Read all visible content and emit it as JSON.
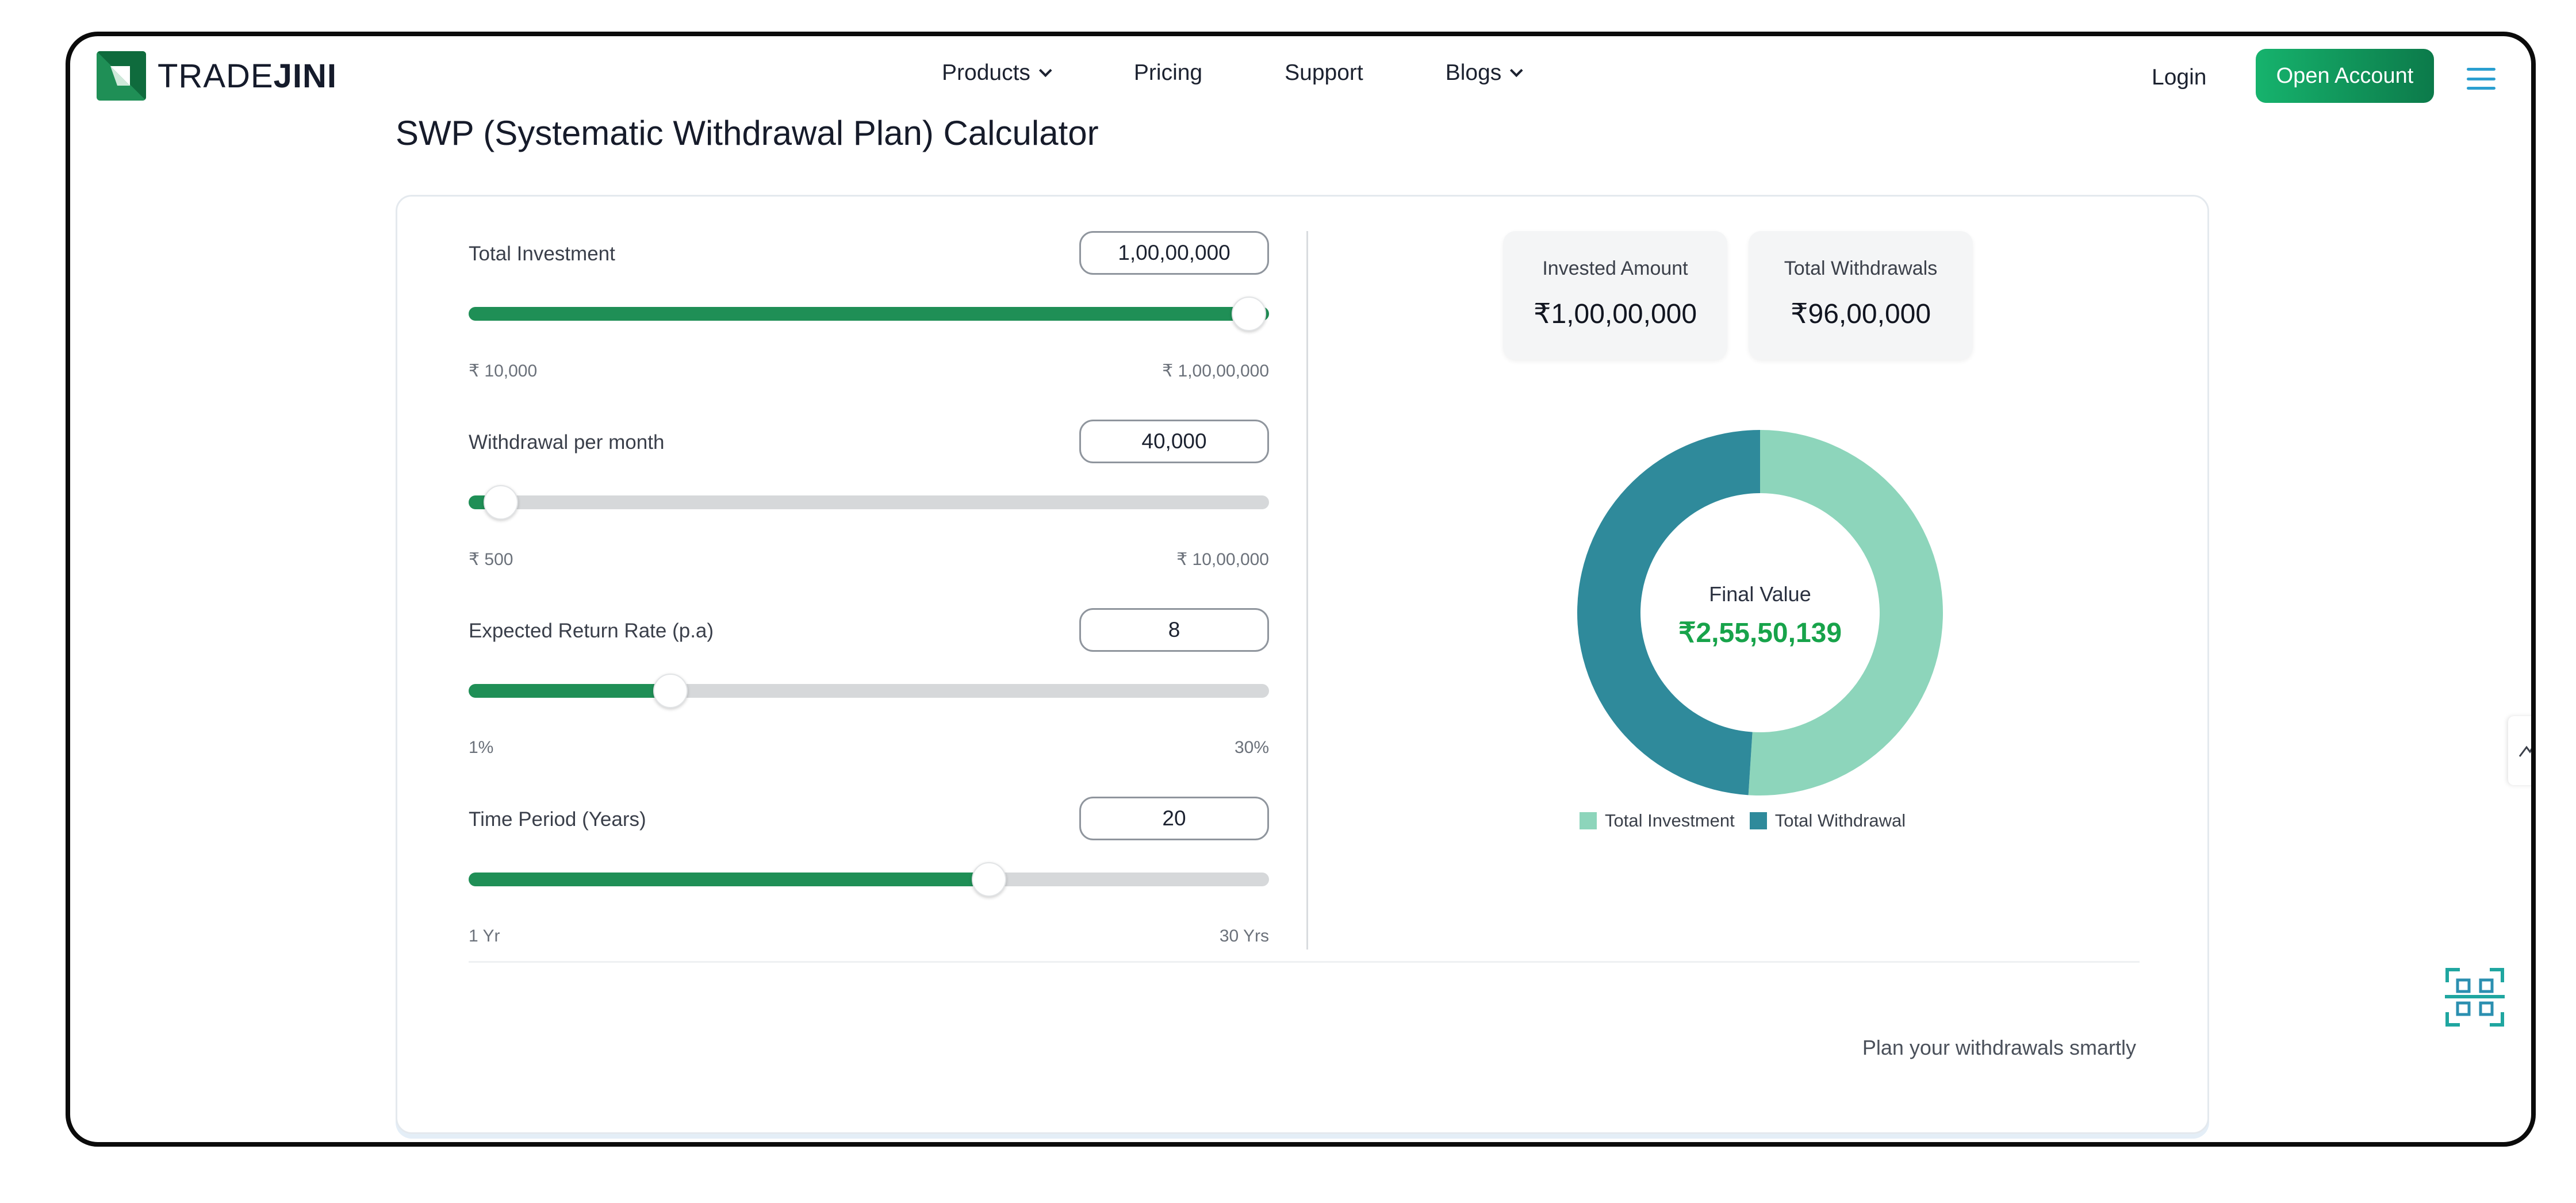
{
  "brand": {
    "name_light": "TRADE",
    "name_bold": "JINI",
    "accent": "#1f8f56",
    "primary_button": "#12a865",
    "teal": "#2f8a9b",
    "mint": "#8dd5bb",
    "final_value_color": "#17a34a"
  },
  "nav": {
    "items": [
      {
        "label": "Products",
        "has_dropdown": true
      },
      {
        "label": "Pricing",
        "has_dropdown": false
      },
      {
        "label": "Support",
        "has_dropdown": false
      },
      {
        "label": "Blogs",
        "has_dropdown": true
      }
    ],
    "login_label": "Login",
    "open_account_label": "Open Account",
    "menu_icon": "hamburger-icon"
  },
  "page": {
    "title": "SWP (Systematic Withdrawal Plan) Calculator"
  },
  "calculator": {
    "fields": [
      {
        "label": "Total Investment",
        "value": "1,00,00,000",
        "min_label": "₹ 10,000",
        "max_label": "₹ 1,00,00,000",
        "fill_fraction": 1.0
      },
      {
        "label": "Withdrawal per month",
        "value": "40,000",
        "min_label": "₹ 500",
        "max_label": "₹ 10,00,000",
        "fill_fraction": 0.04
      },
      {
        "label": "Expected Return Rate (p.a)",
        "value": "8",
        "min_label": "1%",
        "max_label": "30%",
        "fill_fraction": 0.252
      },
      {
        "label": "Time Period (Years)",
        "value": "20",
        "min_label": "1 Yr",
        "max_label": "30 Yrs",
        "fill_fraction": 0.65
      }
    ],
    "summary": {
      "invested_label": "Invested Amount",
      "invested_value": "₹1,00,00,000",
      "withdrawals_label": "Total Withdrawals",
      "withdrawals_value": "₹96,00,000"
    },
    "donut": {
      "center_label": "Final Value",
      "center_value": "₹2,55,50,139",
      "segments": [
        {
          "name": "Total Investment",
          "value": 10000000,
          "color": "#8dd5bb"
        },
        {
          "name": "Total Withdrawal",
          "value": 9600000,
          "color": "#2f8a9b"
        }
      ]
    },
    "legend": {
      "investment_label": "Total Investment",
      "withdrawal_label": "Total Withdrawal"
    },
    "footer_text": "Plan your withdrawals smartly"
  },
  "widgets": {
    "edge_tab_icon": "trend-arrow-icon",
    "qr_icon": "qr-code-icon"
  }
}
